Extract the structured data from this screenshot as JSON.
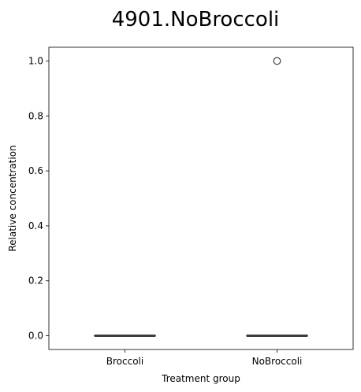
{
  "chart_data": {
    "type": "box",
    "title": "4901.NoBroccoli",
    "xlabel": "Treatment group",
    "ylabel": "Relative concentration",
    "categories": [
      "Broccoli",
      "NoBroccoli"
    ],
    "boxes": [
      {
        "category": "Broccoli",
        "min": 0.0,
        "q1": 0.0,
        "median": 0.0,
        "q3": 0.0,
        "max": 0.0,
        "outliers": []
      },
      {
        "category": "NoBroccoli",
        "min": 0.0,
        "q1": 0.0,
        "median": 0.0,
        "q3": 0.0,
        "max": 0.0,
        "outliers": [
          1.0
        ]
      }
    ],
    "yticks": [
      "0.0",
      "0.2",
      "0.4",
      "0.6",
      "0.8",
      "1.0"
    ],
    "ylim": [
      -0.05,
      1.05
    ],
    "grid": false,
    "legend": "none",
    "colors": {
      "box_line": "#3d3d3d",
      "box_fill": "#ffffff",
      "axis": "#000000"
    }
  }
}
